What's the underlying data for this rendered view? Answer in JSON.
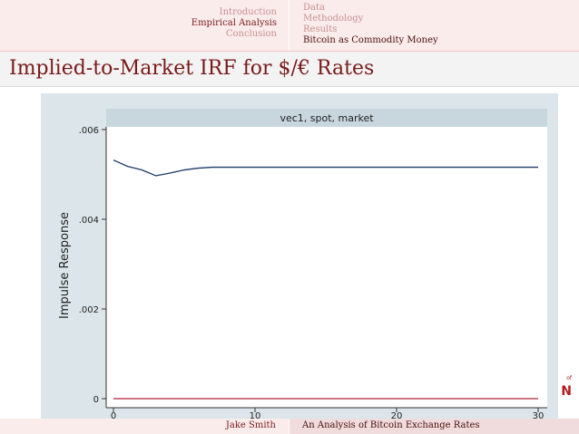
{
  "nav": {
    "sections": [
      {
        "label": "Introduction",
        "active": false
      },
      {
        "label": "Empirical Analysis",
        "active": true
      },
      {
        "label": "Conclusion",
        "active": false
      }
    ],
    "subsections": [
      {
        "label": "Data",
        "active": false
      },
      {
        "label": "Methodology",
        "active": false
      },
      {
        "label": "Results",
        "active": false
      },
      {
        "label": "Bitcoin as Commodity Money",
        "active": true
      }
    ]
  },
  "slide": {
    "title": "Implied-to-Market IRF for $/€ Rates"
  },
  "logo": {
    "text": "N",
    "small": "of"
  },
  "footer": {
    "author": "Jake Smith",
    "title": "An Analysis of Bitcoin Exchange Rates"
  },
  "colors": {
    "accent": "#7a1a1a",
    "irf_line": "#1a3a6a",
    "zero_line": "#b0243a",
    "plot_bg": "#ffffff",
    "chart_bg": "#dce6ea"
  },
  "chart_data": {
    "type": "line",
    "panel_title": "vec1, spot, market",
    "ylabel": "Impulse Response",
    "xlabel": "",
    "xlim": [
      0,
      30
    ],
    "ylim": [
      0,
      0.006
    ],
    "xticks": [
      0,
      10,
      20,
      30
    ],
    "xtick_labels": [
      "0",
      "10",
      "20",
      "30"
    ],
    "yticks": [
      0,
      0.002,
      0.004,
      0.006
    ],
    "ytick_labels": [
      "0",
      ".002",
      ".004",
      ".006"
    ],
    "grid": false,
    "series": [
      {
        "color": "#1a3a6a",
        "x": [
          0,
          1,
          2,
          3,
          4,
          5,
          6,
          7,
          8,
          9,
          10,
          11,
          12,
          13,
          14,
          15,
          16,
          17,
          18,
          19,
          20,
          21,
          22,
          23,
          24,
          25,
          26,
          27,
          28,
          29,
          30
        ],
        "y": [
          0.00532,
          0.00518,
          0.0051,
          0.00497,
          0.00503,
          0.0051,
          0.00514,
          0.00516,
          0.00516,
          0.00516,
          0.00516,
          0.00516,
          0.00516,
          0.00516,
          0.00516,
          0.00516,
          0.00516,
          0.00516,
          0.00516,
          0.00516,
          0.00516,
          0.00516,
          0.00516,
          0.00516,
          0.00516,
          0.00516,
          0.00516,
          0.00516,
          0.00516,
          0.00516,
          0.00516
        ]
      },
      {
        "color": "#b0243a",
        "x": [
          0,
          30
        ],
        "y": [
          0,
          0
        ]
      }
    ]
  }
}
